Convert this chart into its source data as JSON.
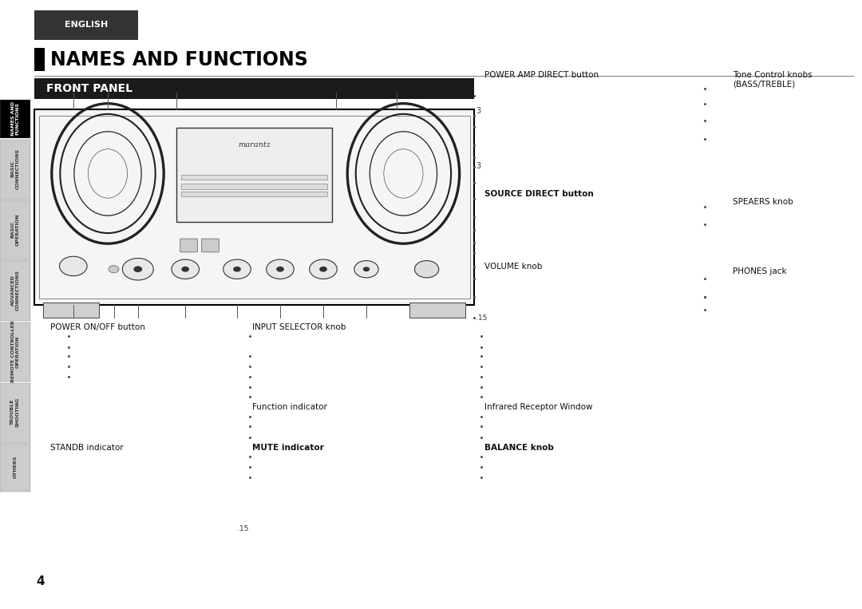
{
  "page_bg": "#ffffff",
  "title_text": "NAMES AND FUNCTIONS",
  "title_bar_color": "#000000",
  "title_text_color": "#000000",
  "section_header": "FRONT PANEL",
  "section_header_bg": "#1a1a1a",
  "section_header_text_color": "#ffffff",
  "top_tab_text": "ENGLISH",
  "top_tab_bg": "#333333",
  "top_tab_text_color": "#ffffff",
  "sidebar_tabs": [
    {
      "text": "NAMES AND\nFUNCTIONS",
      "bg": "#000000",
      "text_color": "#ffffff"
    },
    {
      "text": "BASIC\nCONNECTIONS",
      "bg": "#cccccc",
      "text_color": "#333333"
    },
    {
      "text": "BASIC\nOPERATION",
      "bg": "#cccccc",
      "text_color": "#333333"
    },
    {
      "text": "ADVANCED\nCONNECTIONS",
      "bg": "#cccccc",
      "text_color": "#333333"
    },
    {
      "text": "REMOTE CONTROLLER\nOPERATION",
      "bg": "#cccccc",
      "text_color": "#333333"
    },
    {
      "text": "TROUBLE\nSHOOTING",
      "bg": "#cccccc",
      "text_color": "#333333"
    },
    {
      "text": "OTHERS",
      "bg": "#cccccc",
      "text_color": "#333333"
    }
  ],
  "page_num": "4",
  "marantz_logo": "marantz",
  "label_power_amp": "POWER AMP DIRECT button",
  "label_tone": "Tone Control knobs",
  "label_tone2": "(BASS/TREBLE)",
  "label_source": "SOURCE DIRECT button",
  "label_speaers": "SPEAERS knob",
  "label_volume": "VOLUME knob",
  "label_phones": "PHONES jack",
  "label_power_onoff": "POWER ON/OFF button",
  "label_input": "INPUT SELECTOR knob",
  "label_function": "Function indicator",
  "label_mute": "MUTE indicator",
  "label_standb": "STANDB indicator",
  "label_infrared": "Infrared Receptor Window",
  "label_balance": "BALANCE knob",
  "note_15": ".15",
  "note_3": "3"
}
